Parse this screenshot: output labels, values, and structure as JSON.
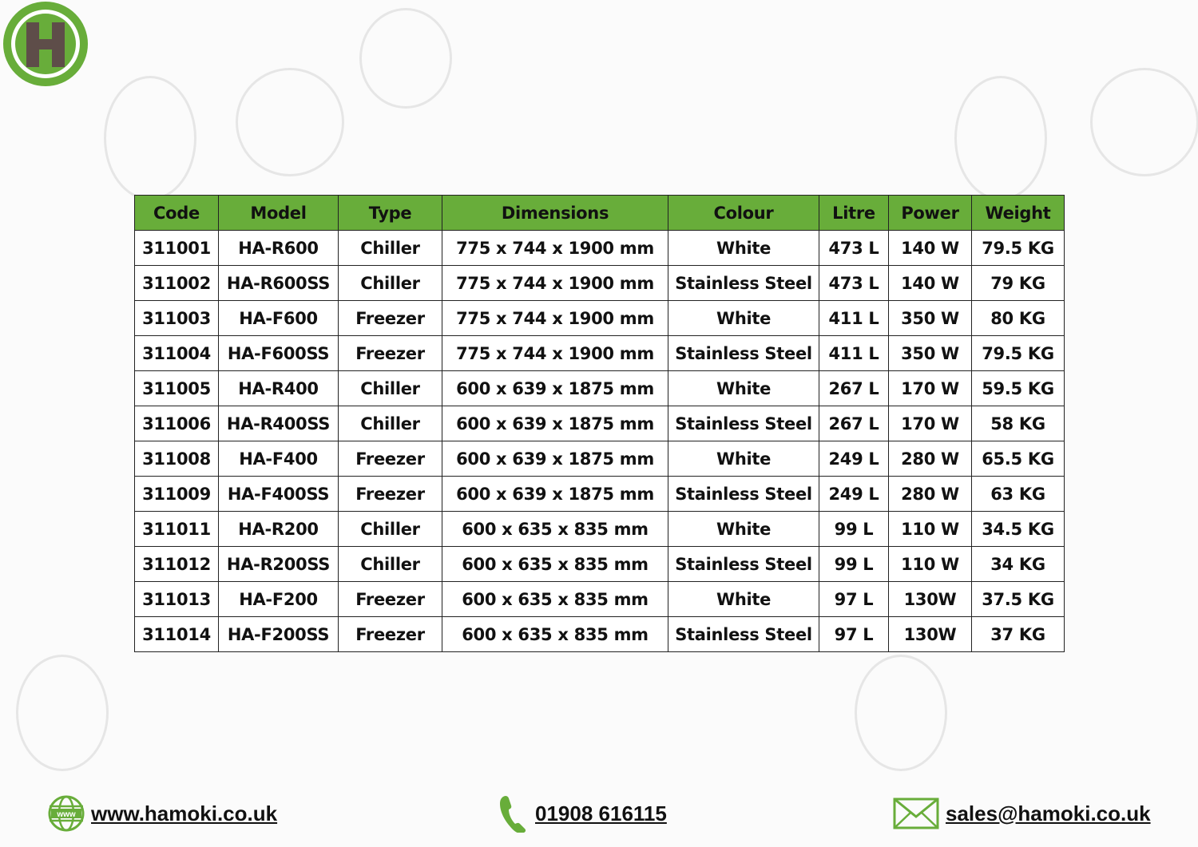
{
  "brand": {
    "logo_letter": "H",
    "accent": "#68ad3a",
    "logo_letter_color": "#5e4d49"
  },
  "table": {
    "headers": [
      "Code",
      "Model",
      "Type",
      "Dimensions",
      "Colour",
      "Litre",
      "Power",
      "Weight"
    ],
    "rows": [
      [
        "311001",
        "HA-R600",
        "Chiller",
        "775 x 744 x 1900 mm",
        "White",
        "473 L",
        "140 W",
        "79.5 KG"
      ],
      [
        "311002",
        "HA-R600SS",
        "Chiller",
        "775 x 744 x 1900 mm",
        "Stainless Steel",
        "473 L",
        "140 W",
        "79 KG"
      ],
      [
        "311003",
        "HA-F600",
        "Freezer",
        "775 x 744 x 1900 mm",
        "White",
        "411 L",
        "350 W",
        "80 KG"
      ],
      [
        "311004",
        "HA-F600SS",
        "Freezer",
        "775 x 744 x 1900 mm",
        "Stainless Steel",
        "411 L",
        "350 W",
        "79.5 KG"
      ],
      [
        "311005",
        "HA-R400",
        "Chiller",
        "600 x 639 x 1875 mm",
        "White",
        "267 L",
        "170 W",
        "59.5 KG"
      ],
      [
        "311006",
        "HA-R400SS",
        "Chiller",
        "600 x 639 x 1875 mm",
        "Stainless Steel",
        "267 L",
        "170 W",
        "58 KG"
      ],
      [
        "311008",
        "HA-F400",
        "Freezer",
        "600 x 639 x 1875 mm",
        "White",
        "249 L",
        "280 W",
        "65.5 KG"
      ],
      [
        "311009",
        "HA-F400SS",
        "Freezer",
        "600 x 639 x 1875 mm",
        "Stainless Steel",
        "249 L",
        "280 W",
        "63 KG"
      ],
      [
        "311011",
        "HA-R200",
        "Chiller",
        "600 x 635 x 835 mm",
        "White",
        "99 L",
        "110 W",
        "34.5 KG"
      ],
      [
        "311012",
        "HA-R200SS",
        "Chiller",
        "600 x 635 x 835 mm",
        "Stainless Steel",
        "99 L",
        "110 W",
        "34 KG"
      ],
      [
        "311013",
        "HA-F200",
        "Freezer",
        "600 x 635 x 835 mm",
        "White",
        "97 L",
        "130W",
        "37.5 KG"
      ],
      [
        "311014",
        "HA-F200SS",
        "Freezer",
        "600 x 635 x 835 mm",
        "Stainless Steel",
        "97 L",
        "130W",
        "37 KG"
      ]
    ]
  },
  "footer": {
    "website": "www.hamoki.co.uk",
    "website_icon_text": "www",
    "phone": "01908 616115",
    "email": "sales@hamoki.co.uk",
    "icons": [
      "globe-icon",
      "phone-icon",
      "envelope-icon"
    ]
  }
}
